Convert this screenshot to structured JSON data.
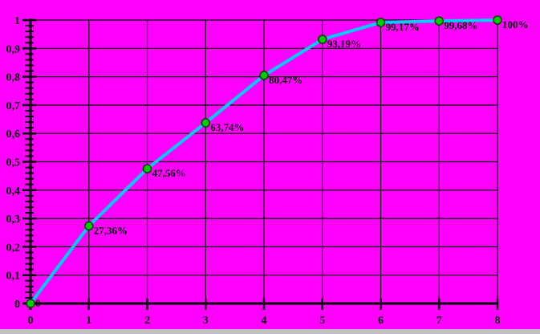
{
  "chart_data": {
    "type": "line",
    "title": "",
    "xlabel": "",
    "ylabel": "",
    "x": [
      0,
      1,
      2,
      3,
      4,
      5,
      6,
      7,
      8
    ],
    "values": [
      0,
      0.2736,
      0.4756,
      0.6374,
      0.8047,
      0.9319,
      0.9917,
      0.9968,
      1.0
    ],
    "point_labels": [
      "0",
      "27,36%",
      "47,56%",
      "63,74%",
      "80,47%",
      "93,19%",
      "99,17%",
      "99,68%",
      "100%"
    ],
    "x_tick_labels": [
      "0",
      "1",
      "2",
      "3",
      "4",
      "5",
      "6",
      "7",
      "8"
    ],
    "y_tick_labels": [
      "0",
      "0,1",
      "0,2",
      "0,3",
      "0,4",
      "0,5",
      "0,6",
      "0,7",
      "0,8",
      "0,9",
      "1"
    ],
    "xlim": [
      0,
      8
    ],
    "ylim": [
      0,
      1
    ],
    "y_major_step": 0.1,
    "y_minor_step": 0.02,
    "grid": true,
    "legend": "none",
    "colors": {
      "background": "#FF00FF",
      "line": "#00CCFF",
      "marker_fill": "#00CC00",
      "marker_stroke": "#004400",
      "grid": "#000000",
      "axis": "#000000",
      "text": "#000000",
      "bottom_strip": "#C0C0C0"
    }
  }
}
